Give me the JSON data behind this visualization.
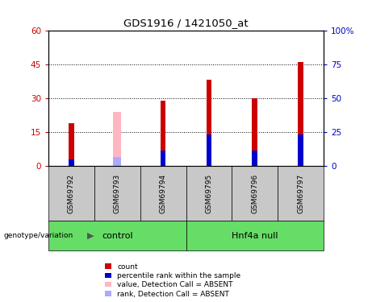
{
  "title": "GDS1916 / 1421050_at",
  "samples": [
    "GSM69792",
    "GSM69793",
    "GSM69794",
    "GSM69795",
    "GSM69796",
    "GSM69797"
  ],
  "ylim_left": [
    0,
    60
  ],
  "ylim_right": [
    0,
    100
  ],
  "yticks_left": [
    0,
    15,
    30,
    45,
    60
  ],
  "yticks_right": [
    0,
    25,
    50,
    75,
    100
  ],
  "red_values": [
    19,
    0,
    29,
    38,
    30,
    46
  ],
  "blue_values": [
    3,
    0,
    7,
    14,
    7,
    14
  ],
  "pink_values": [
    0,
    24,
    0,
    0,
    0,
    0
  ],
  "lightblue_values": [
    0,
    4,
    0,
    0,
    0,
    0
  ],
  "absent_mask": [
    false,
    true,
    false,
    false,
    false,
    false
  ],
  "red_color": "#CC0000",
  "blue_color": "#0000CC",
  "pink_color": "#FFB6C1",
  "lightblue_color": "#AAAAFF",
  "bar_width": 0.12,
  "absent_bar_width": 0.18,
  "bg_color": "#C8C8C8",
  "green_color": "#66DD66",
  "left_axis_color": "#CC0000",
  "right_axis_color": "#0000CC",
  "group_spans": [
    [
      0,
      2,
      "control"
    ],
    [
      3,
      5,
      "Hnf4a null"
    ]
  ],
  "legend_items": [
    {
      "label": "count",
      "color": "#CC0000"
    },
    {
      "label": "percentile rank within the sample",
      "color": "#0000CC"
    },
    {
      "label": "value, Detection Call = ABSENT",
      "color": "#FFB6C1"
    },
    {
      "label": "rank, Detection Call = ABSENT",
      "color": "#AAAAFF"
    }
  ]
}
